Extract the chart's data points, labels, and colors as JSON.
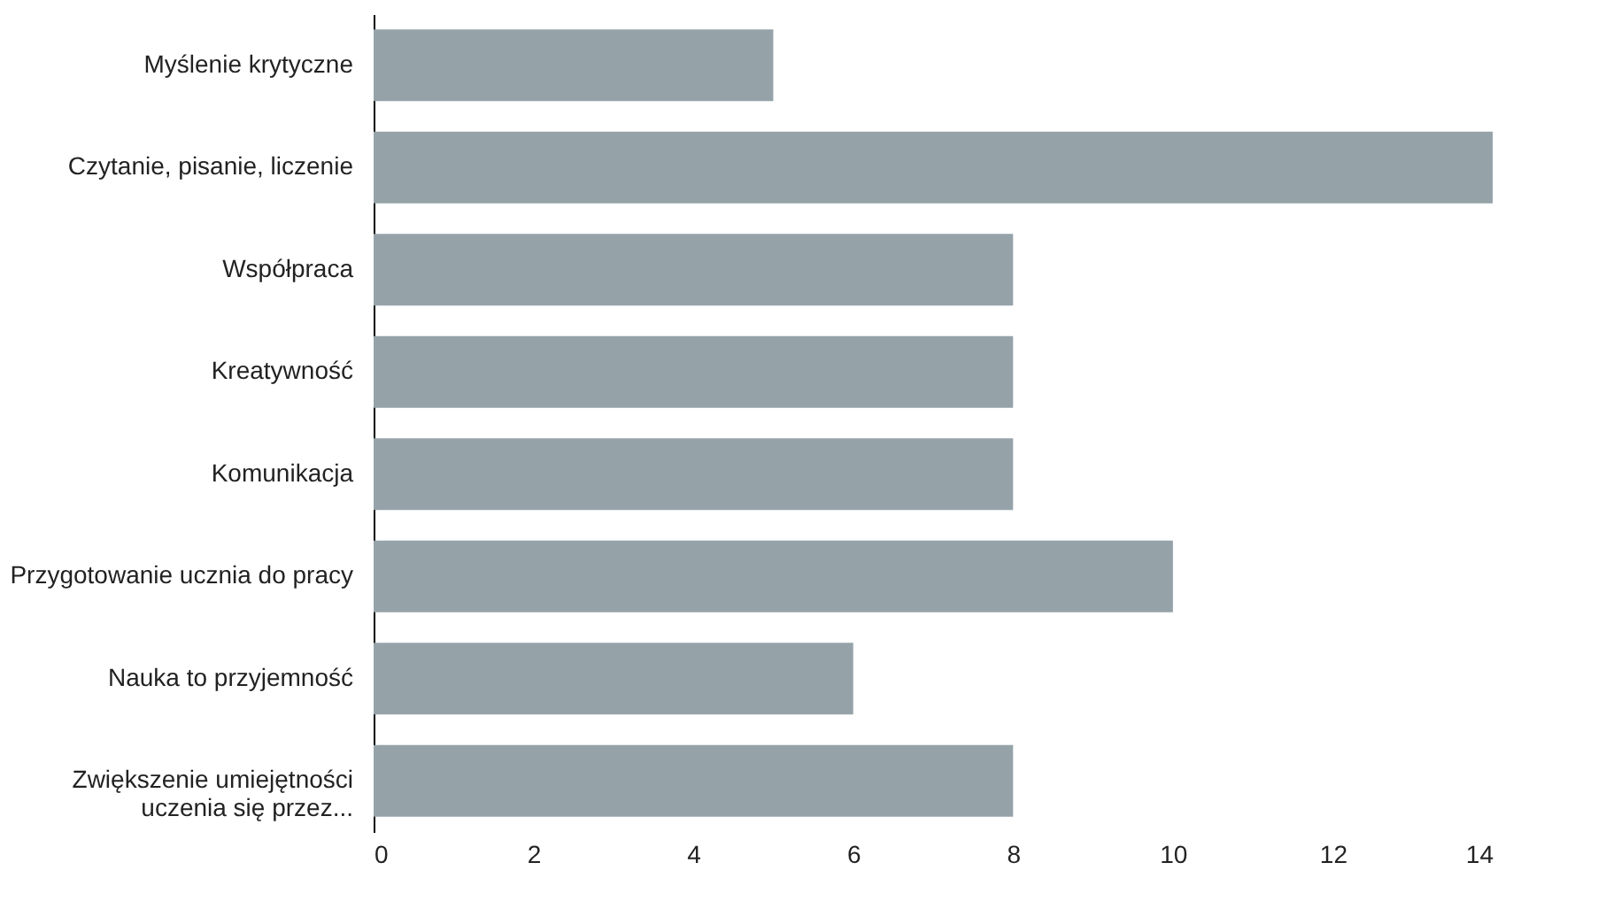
{
  "chart_data": {
    "type": "bar",
    "orientation": "horizontal",
    "categories": [
      "Myślenie krytyczne",
      "Czytanie, pisanie, liczenie",
      "Współpraca",
      "Kreatywność",
      "Komunikacja",
      "Przygotowanie ucznia do pracy",
      "Nauka to przyjemność",
      "Zwiększenie umiejętności\nuczenia się przez..."
    ],
    "values": [
      5,
      14,
      8,
      8,
      8,
      10,
      6,
      8
    ],
    "color": "#95a3a9",
    "xlim": [
      0,
      14
    ],
    "xticks": [
      0,
      2,
      4,
      6,
      8,
      10,
      12,
      14
    ],
    "grid": false
  }
}
